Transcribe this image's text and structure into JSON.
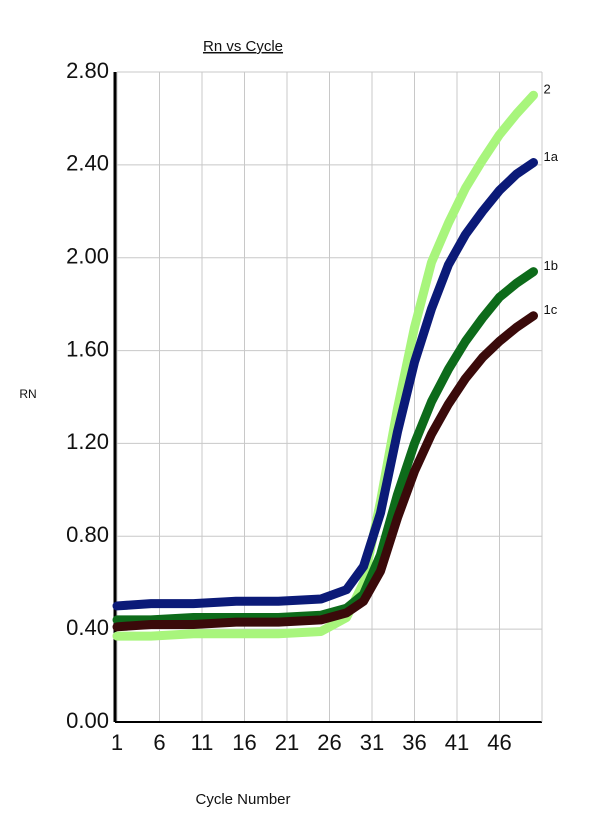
{
  "chart_data": {
    "type": "line",
    "title": "Rn vs Cycle",
    "x_label": "Cycle Number",
    "y_label": "RN",
    "x": [
      1,
      5,
      10,
      15,
      20,
      25,
      28,
      30,
      32,
      34,
      36,
      38,
      40,
      42,
      44,
      46,
      48,
      50
    ],
    "series": [
      {
        "name": "2",
        "color": "#a8f57c",
        "values": [
          0.37,
          0.37,
          0.38,
          0.38,
          0.38,
          0.39,
          0.45,
          0.6,
          0.95,
          1.35,
          1.7,
          1.98,
          2.15,
          2.3,
          2.42,
          2.53,
          2.62,
          2.7
        ]
      },
      {
        "name": "1a",
        "color": "#0b1a78",
        "values": [
          0.5,
          0.51,
          0.51,
          0.52,
          0.52,
          0.53,
          0.57,
          0.67,
          0.9,
          1.25,
          1.55,
          1.78,
          1.97,
          2.1,
          2.2,
          2.29,
          2.36,
          2.41
        ]
      },
      {
        "name": "1b",
        "color": "#0d6b1a",
        "values": [
          0.44,
          0.44,
          0.45,
          0.45,
          0.45,
          0.46,
          0.49,
          0.55,
          0.72,
          0.98,
          1.2,
          1.38,
          1.52,
          1.64,
          1.74,
          1.83,
          1.89,
          1.94
        ]
      },
      {
        "name": "1c",
        "color": "#3a0a0a",
        "values": [
          0.41,
          0.42,
          0.42,
          0.43,
          0.43,
          0.44,
          0.47,
          0.52,
          0.65,
          0.88,
          1.08,
          1.24,
          1.37,
          1.48,
          1.57,
          1.64,
          1.7,
          1.75
        ]
      }
    ],
    "xlim": [
      1,
      51
    ],
    "xticks": [
      1,
      6,
      11,
      16,
      21,
      26,
      31,
      36,
      41,
      46
    ],
    "ylim": [
      0,
      2.8
    ],
    "yticks": [
      {
        "value": 0,
        "label": "0.00"
      },
      {
        "value": 0.4,
        "label": "0.40"
      },
      {
        "value": 0.8,
        "label": "0.80"
      },
      {
        "value": 1.2,
        "label": "1.20"
      },
      {
        "value": 1.6,
        "label": "1.60"
      },
      {
        "value": 2,
        "label": "2.00"
      },
      {
        "value": 2.4,
        "label": "2.40"
      },
      {
        "value": 2.8,
        "label": "2.80"
      }
    ],
    "grid": true
  }
}
